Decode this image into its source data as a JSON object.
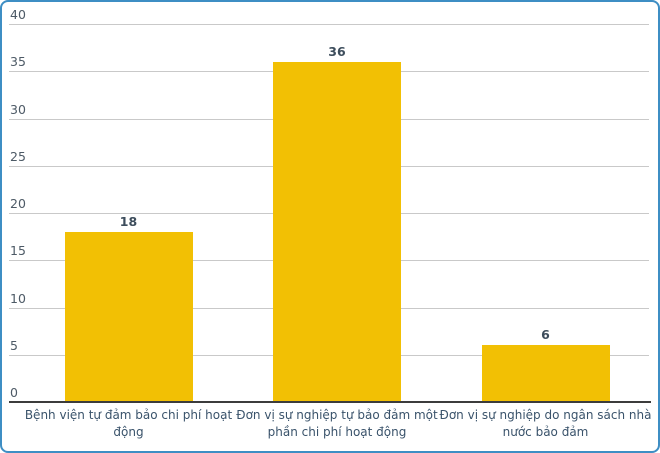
{
  "chart": {
    "border_color": "#3e8ec4",
    "background_color": "#ffffff"
  },
  "chart_data": {
    "type": "bar",
    "title": "",
    "xlabel": "",
    "ylabel": "",
    "categories": [
      "Bệnh viện tự đảm bảo chi phí hoạt động",
      "Đơn vị sự nghiệp tự bảo đảm một phần chi phí hoạt động",
      "Đơn vị sự nghiệp do ngân sách nhà nước bảo đảm"
    ],
    "values": [
      18,
      36,
      6
    ],
    "data_labels": [
      "18",
      "36",
      "6"
    ],
    "ylim": [
      0,
      40
    ],
    "yticks": [
      0,
      5,
      10,
      15,
      20,
      25,
      30,
      35,
      40
    ],
    "grid": true,
    "legend": "none",
    "bar_color": "#f2c004",
    "gridline_color": "#c9c9c9",
    "axis_line_color": "#3c3c3c",
    "tick_label_color": "#4d5a66",
    "value_label_color": "#3d4d5c",
    "category_label_color": "#3a536b"
  }
}
